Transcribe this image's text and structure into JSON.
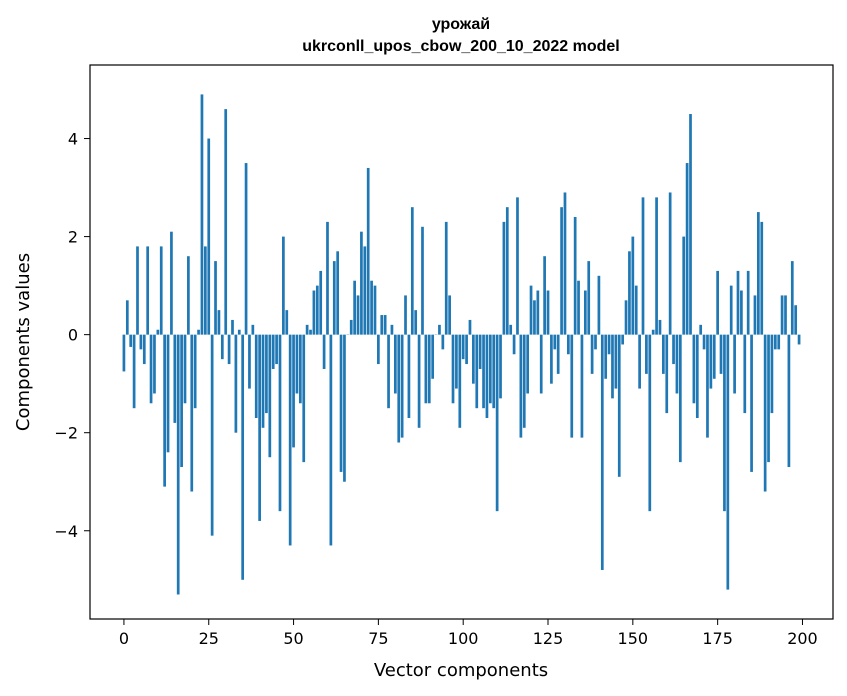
{
  "chart_data": {
    "type": "bar",
    "title": "урожай",
    "subtitle": "ukrconll_upos_cbow_200_10_2022 model",
    "xlabel": "Vector components",
    "ylabel": "Components values",
    "xlim": [
      -10,
      209
    ],
    "ylim": [
      -5.8,
      5.5
    ],
    "xticks": [
      0,
      25,
      50,
      75,
      100,
      125,
      150,
      175,
      200
    ],
    "xtick_labels": [
      "0",
      "25",
      "50",
      "75",
      "100",
      "125",
      "150",
      "175",
      "200"
    ],
    "yticks": [
      -4,
      -2,
      0,
      2,
      4
    ],
    "ytick_labels": [
      "−4",
      "−2",
      "0",
      "2",
      "4"
    ],
    "bar_color": "#1f77b4",
    "grid": false,
    "values": [
      -0.75,
      0.7,
      -0.25,
      -1.5,
      1.8,
      -0.3,
      -0.6,
      1.8,
      -1.4,
      -1.2,
      0.1,
      1.8,
      -3.1,
      -2.4,
      2.1,
      -1.8,
      -5.3,
      -2.7,
      -1.4,
      1.6,
      -3.2,
      -1.5,
      0.1,
      4.9,
      1.8,
      4.0,
      -4.1,
      1.5,
      0.5,
      -0.5,
      4.6,
      -0.6,
      0.3,
      -2.0,
      0.1,
      -5.0,
      3.5,
      -1.1,
      0.2,
      -1.7,
      -3.8,
      -1.9,
      -1.6,
      -2.5,
      -0.7,
      -0.6,
      -3.6,
      2.0,
      0.5,
      -4.3,
      -2.3,
      -1.2,
      -1.4,
      -2.6,
      0.2,
      0.1,
      0.9,
      1.0,
      1.3,
      -0.7,
      2.3,
      -4.3,
      1.5,
      1.7,
      -2.8,
      -3.0,
      0.0,
      0.3,
      1.1,
      0.8,
      2.1,
      1.8,
      3.4,
      1.1,
      1.0,
      -0.6,
      0.4,
      0.4,
      -1.5,
      0.2,
      -1.2,
      -2.2,
      -2.1,
      0.8,
      -1.7,
      2.6,
      0.5,
      -1.9,
      2.2,
      -1.4,
      -1.4,
      -0.9,
      0.0,
      0.2,
      -0.3,
      2.3,
      0.8,
      -1.4,
      -1.1,
      -1.9,
      -0.5,
      -0.6,
      0.3,
      -1.0,
      -1.5,
      -0.7,
      -1.5,
      -1.7,
      -1.4,
      -1.5,
      -3.6,
      -1.3,
      2.3,
      2.6,
      0.2,
      -0.4,
      2.8,
      -2.1,
      -1.9,
      -1.2,
      1.0,
      0.7,
      0.9,
      -1.2,
      1.6,
      0.9,
      -1.0,
      -0.3,
      -0.8,
      2.6,
      2.9,
      -0.4,
      -2.1,
      2.4,
      1.1,
      -2.1,
      0.9,
      1.5,
      -0.8,
      -0.3,
      1.2,
      -4.8,
      -0.9,
      -0.4,
      -1.3,
      -1.1,
      -2.9,
      -0.2,
      0.7,
      1.7,
      2.0,
      1.0,
      -1.1,
      2.8,
      -0.8,
      -3.6,
      0.1,
      2.8,
      0.3,
      -0.8,
      -1.6,
      2.9,
      -0.6,
      -1.2,
      -2.6,
      2.0,
      3.5,
      4.5,
      -1.4,
      -1.7,
      0.2,
      -0.3,
      -2.1,
      -1.1,
      -0.9,
      1.3,
      -0.8,
      -3.6,
      -5.2,
      1.0,
      -1.2,
      1.3,
      0.9,
      -1.6,
      1.3,
      -2.8,
      0.8,
      2.5,
      2.3,
      -3.2,
      -2.6,
      -1.6,
      -0.3,
      -0.3,
      0.8,
      0.8,
      -2.7,
      1.5,
      0.6,
      -0.2
    ]
  }
}
